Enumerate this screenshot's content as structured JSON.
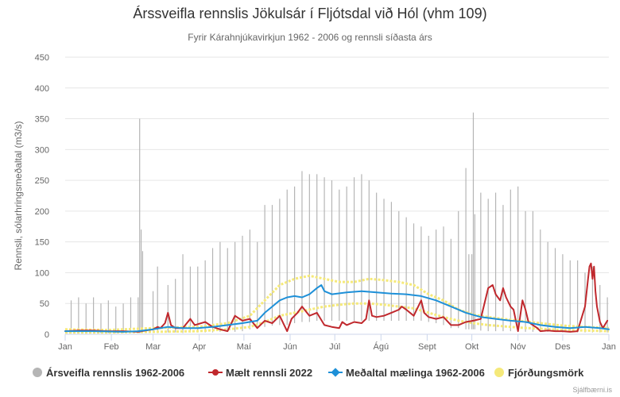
{
  "chart_data": {
    "type": "line",
    "title": "Árssveifla rennslis Jökulsár í Fljótsdal við Hól (vhm 109)",
    "subtitle": "Fyrir Kárahnjúkavirkjun 1962 - 2006 og rennsli síðasta árs",
    "ylabel": "Rennsli, sólarhringsmeðaltal (m3/s)",
    "xlabel": "",
    "ylim": [
      0,
      450
    ],
    "y_ticks": [
      0,
      50,
      100,
      150,
      200,
      250,
      300,
      350,
      400,
      450
    ],
    "x_domain_days": [
      1,
      366
    ],
    "month_ticks": [
      {
        "label": "Jan",
        "day": 1
      },
      {
        "label": "Feb",
        "day": 32
      },
      {
        "label": "Mar",
        "day": 60
      },
      {
        "label": "Apr",
        "day": 91
      },
      {
        "label": "Maí",
        "day": 121
      },
      {
        "label": "Jún",
        "day": 152
      },
      {
        "label": "Júl",
        "day": 182
      },
      {
        "label": "Ágú",
        "day": 213
      },
      {
        "label": "Sept",
        "day": 244
      },
      {
        "label": "Okt",
        "day": 274
      },
      {
        "label": "Nóv",
        "day": 305
      },
      {
        "label": "Des",
        "day": 335
      },
      {
        "label": "Jan",
        "day": 366
      }
    ],
    "grid": true,
    "legend_position": "bottom",
    "series": [
      {
        "name": "Ársveifla rennslis 1962-2006",
        "kind": "range",
        "color": "#b5b5b5",
        "points": [
          [
            5,
            2,
            55
          ],
          [
            10,
            3,
            60
          ],
          [
            15,
            3,
            50
          ],
          [
            20,
            2,
            60
          ],
          [
            25,
            2,
            50
          ],
          [
            30,
            2,
            55
          ],
          [
            35,
            2,
            45
          ],
          [
            40,
            2,
            50
          ],
          [
            45,
            2,
            60
          ],
          [
            50,
            2,
            60
          ],
          [
            51,
            2,
            350
          ],
          [
            52,
            2,
            170
          ],
          [
            53,
            2,
            135
          ],
          [
            60,
            2,
            70
          ],
          [
            63,
            2,
            110
          ],
          [
            70,
            3,
            80
          ],
          [
            75,
            3,
            90
          ],
          [
            80,
            2,
            130
          ],
          [
            85,
            3,
            110
          ],
          [
            90,
            3,
            110
          ],
          [
            95,
            3,
            120
          ],
          [
            100,
            3,
            140
          ],
          [
            105,
            4,
            150
          ],
          [
            110,
            4,
            140
          ],
          [
            115,
            4,
            150
          ],
          [
            120,
            5,
            160
          ],
          [
            125,
            8,
            170
          ],
          [
            130,
            10,
            150
          ],
          [
            135,
            12,
            210
          ],
          [
            140,
            14,
            210
          ],
          [
            145,
            15,
            220
          ],
          [
            150,
            15,
            235
          ],
          [
            155,
            18,
            240
          ],
          [
            160,
            20,
            265
          ],
          [
            165,
            20,
            260
          ],
          [
            170,
            22,
            260
          ],
          [
            175,
            22,
            255
          ],
          [
            180,
            22,
            250
          ],
          [
            185,
            22,
            235
          ],
          [
            190,
            22,
            240
          ],
          [
            195,
            22,
            255
          ],
          [
            200,
            22,
            260
          ],
          [
            205,
            22,
            250
          ],
          [
            210,
            22,
            230
          ],
          [
            215,
            22,
            220
          ],
          [
            220,
            22,
            215
          ],
          [
            225,
            22,
            200
          ],
          [
            230,
            22,
            190
          ],
          [
            235,
            22,
            180
          ],
          [
            240,
            22,
            175
          ],
          [
            245,
            20,
            160
          ],
          [
            250,
            18,
            170
          ],
          [
            255,
            15,
            175
          ],
          [
            260,
            10,
            155
          ],
          [
            265,
            10,
            200
          ],
          [
            270,
            8,
            270
          ],
          [
            272,
            8,
            130
          ],
          [
            274,
            8,
            130
          ],
          [
            275,
            8,
            360
          ],
          [
            276,
            8,
            195
          ],
          [
            280,
            6,
            230
          ],
          [
            285,
            5,
            220
          ],
          [
            290,
            5,
            230
          ],
          [
            295,
            5,
            210
          ],
          [
            300,
            5,
            235
          ],
          [
            305,
            4,
            240
          ],
          [
            310,
            4,
            200
          ],
          [
            315,
            4,
            200
          ],
          [
            320,
            4,
            170
          ],
          [
            325,
            4,
            150
          ],
          [
            330,
            4,
            140
          ],
          [
            335,
            3,
            130
          ],
          [
            340,
            3,
            120
          ],
          [
            345,
            3,
            120
          ],
          [
            350,
            3,
            100
          ],
          [
            355,
            3,
            110
          ],
          [
            360,
            3,
            80
          ],
          [
            365,
            3,
            60
          ]
        ]
      },
      {
        "name": "Mælt rennsli 2022",
        "kind": "line",
        "color": "#c0282d",
        "points": [
          [
            1,
            5
          ],
          [
            10,
            6
          ],
          [
            20,
            6
          ],
          [
            30,
            5
          ],
          [
            40,
            5
          ],
          [
            50,
            4
          ],
          [
            55,
            6
          ],
          [
            60,
            8
          ],
          [
            63,
            12
          ],
          [
            65,
            10
          ],
          [
            68,
            18
          ],
          [
            70,
            35
          ],
          [
            72,
            15
          ],
          [
            75,
            10
          ],
          [
            80,
            10
          ],
          [
            85,
            25
          ],
          [
            88,
            15
          ],
          [
            95,
            20
          ],
          [
            100,
            12
          ],
          [
            105,
            8
          ],
          [
            110,
            5
          ],
          [
            115,
            30
          ],
          [
            120,
            22
          ],
          [
            125,
            25
          ],
          [
            130,
            10
          ],
          [
            135,
            22
          ],
          [
            140,
            18
          ],
          [
            145,
            30
          ],
          [
            148,
            15
          ],
          [
            150,
            5
          ],
          [
            153,
            25
          ],
          [
            157,
            35
          ],
          [
            160,
            45
          ],
          [
            165,
            30
          ],
          [
            170,
            35
          ],
          [
            175,
            15
          ],
          [
            180,
            12
          ],
          [
            185,
            10
          ],
          [
            187,
            20
          ],
          [
            190,
            15
          ],
          [
            195,
            20
          ],
          [
            200,
            18
          ],
          [
            203,
            25
          ],
          [
            205,
            55
          ],
          [
            207,
            30
          ],
          [
            210,
            28
          ],
          [
            215,
            30
          ],
          [
            220,
            35
          ],
          [
            225,
            40
          ],
          [
            227,
            45
          ],
          [
            230,
            40
          ],
          [
            235,
            30
          ],
          [
            240,
            55
          ],
          [
            242,
            35
          ],
          [
            245,
            28
          ],
          [
            250,
            25
          ],
          [
            255,
            28
          ],
          [
            260,
            15
          ],
          [
            265,
            15
          ],
          [
            270,
            20
          ],
          [
            275,
            22
          ],
          [
            280,
            25
          ],
          [
            285,
            75
          ],
          [
            288,
            80
          ],
          [
            290,
            65
          ],
          [
            293,
            55
          ],
          [
            295,
            75
          ],
          [
            297,
            60
          ],
          [
            300,
            45
          ],
          [
            302,
            40
          ],
          [
            305,
            5
          ],
          [
            308,
            55
          ],
          [
            310,
            40
          ],
          [
            312,
            20
          ],
          [
            315,
            15
          ],
          [
            318,
            10
          ],
          [
            320,
            5
          ],
          [
            325,
            6
          ],
          [
            330,
            5
          ],
          [
            335,
            5
          ],
          [
            340,
            4
          ],
          [
            345,
            5
          ],
          [
            350,
            45
          ],
          [
            352,
            90
          ],
          [
            353,
            110
          ],
          [
            354,
            115
          ],
          [
            355,
            90
          ],
          [
            356,
            110
          ],
          [
            357,
            70
          ],
          [
            358,
            45
          ],
          [
            360,
            20
          ],
          [
            362,
            10
          ],
          [
            365,
            22
          ],
          [
            370,
            20
          ],
          [
            375,
            8
          ],
          [
            380,
            8
          ],
          [
            385,
            15
          ],
          [
            390,
            10
          ],
          [
            395,
            8
          ]
        ]
      },
      {
        "name": "Meðaltal mælinga 1962-2006",
        "kind": "line",
        "color": "#1e90d8",
        "points": [
          [
            1,
            5
          ],
          [
            20,
            5
          ],
          [
            40,
            4
          ],
          [
            50,
            5
          ],
          [
            60,
            8
          ],
          [
            70,
            12
          ],
          [
            80,
            10
          ],
          [
            90,
            10
          ],
          [
            100,
            12
          ],
          [
            110,
            15
          ],
          [
            120,
            18
          ],
          [
            130,
            22
          ],
          [
            135,
            35
          ],
          [
            140,
            45
          ],
          [
            145,
            55
          ],
          [
            150,
            60
          ],
          [
            155,
            62
          ],
          [
            160,
            60
          ],
          [
            165,
            65
          ],
          [
            170,
            75
          ],
          [
            173,
            80
          ],
          [
            175,
            70
          ],
          [
            180,
            65
          ],
          [
            190,
            68
          ],
          [
            200,
            70
          ],
          [
            210,
            68
          ],
          [
            220,
            66
          ],
          [
            230,
            65
          ],
          [
            240,
            62
          ],
          [
            250,
            55
          ],
          [
            260,
            45
          ],
          [
            270,
            35
          ],
          [
            280,
            28
          ],
          [
            290,
            25
          ],
          [
            300,
            22
          ],
          [
            310,
            20
          ],
          [
            320,
            15
          ],
          [
            330,
            12
          ],
          [
            340,
            10
          ],
          [
            350,
            12
          ],
          [
            360,
            10
          ],
          [
            366,
            8
          ]
        ]
      },
      {
        "name": "Fjórðungsmörk",
        "kind": "band",
        "color": "#f5e97a",
        "upper": [
          [
            1,
            8
          ],
          [
            30,
            7
          ],
          [
            60,
            10
          ],
          [
            90,
            12
          ],
          [
            110,
            18
          ],
          [
            125,
            30
          ],
          [
            135,
            55
          ],
          [
            145,
            80
          ],
          [
            155,
            90
          ],
          [
            165,
            95
          ],
          [
            175,
            90
          ],
          [
            185,
            85
          ],
          [
            195,
            85
          ],
          [
            205,
            90
          ],
          [
            215,
            88
          ],
          [
            225,
            85
          ],
          [
            235,
            80
          ],
          [
            245,
            65
          ],
          [
            255,
            55
          ],
          [
            265,
            40
          ],
          [
            275,
            32
          ],
          [
            285,
            28
          ],
          [
            295,
            25
          ],
          [
            305,
            22
          ],
          [
            320,
            18
          ],
          [
            335,
            14
          ],
          [
            350,
            12
          ],
          [
            366,
            10
          ]
        ],
        "lower": [
          [
            1,
            3
          ],
          [
            30,
            3
          ],
          [
            60,
            4
          ],
          [
            90,
            5
          ],
          [
            110,
            8
          ],
          [
            125,
            12
          ],
          [
            135,
            20
          ],
          [
            145,
            30
          ],
          [
            155,
            35
          ],
          [
            165,
            40
          ],
          [
            175,
            45
          ],
          [
            185,
            48
          ],
          [
            195,
            50
          ],
          [
            205,
            50
          ],
          [
            215,
            48
          ],
          [
            225,
            45
          ],
          [
            235,
            42
          ],
          [
            245,
            35
          ],
          [
            255,
            28
          ],
          [
            265,
            22
          ],
          [
            275,
            18
          ],
          [
            285,
            15
          ],
          [
            295,
            13
          ],
          [
            305,
            11
          ],
          [
            320,
            9
          ],
          [
            335,
            7
          ],
          [
            350,
            6
          ],
          [
            366,
            5
          ]
        ]
      }
    ]
  },
  "credits": "Sjálfbærni.is"
}
